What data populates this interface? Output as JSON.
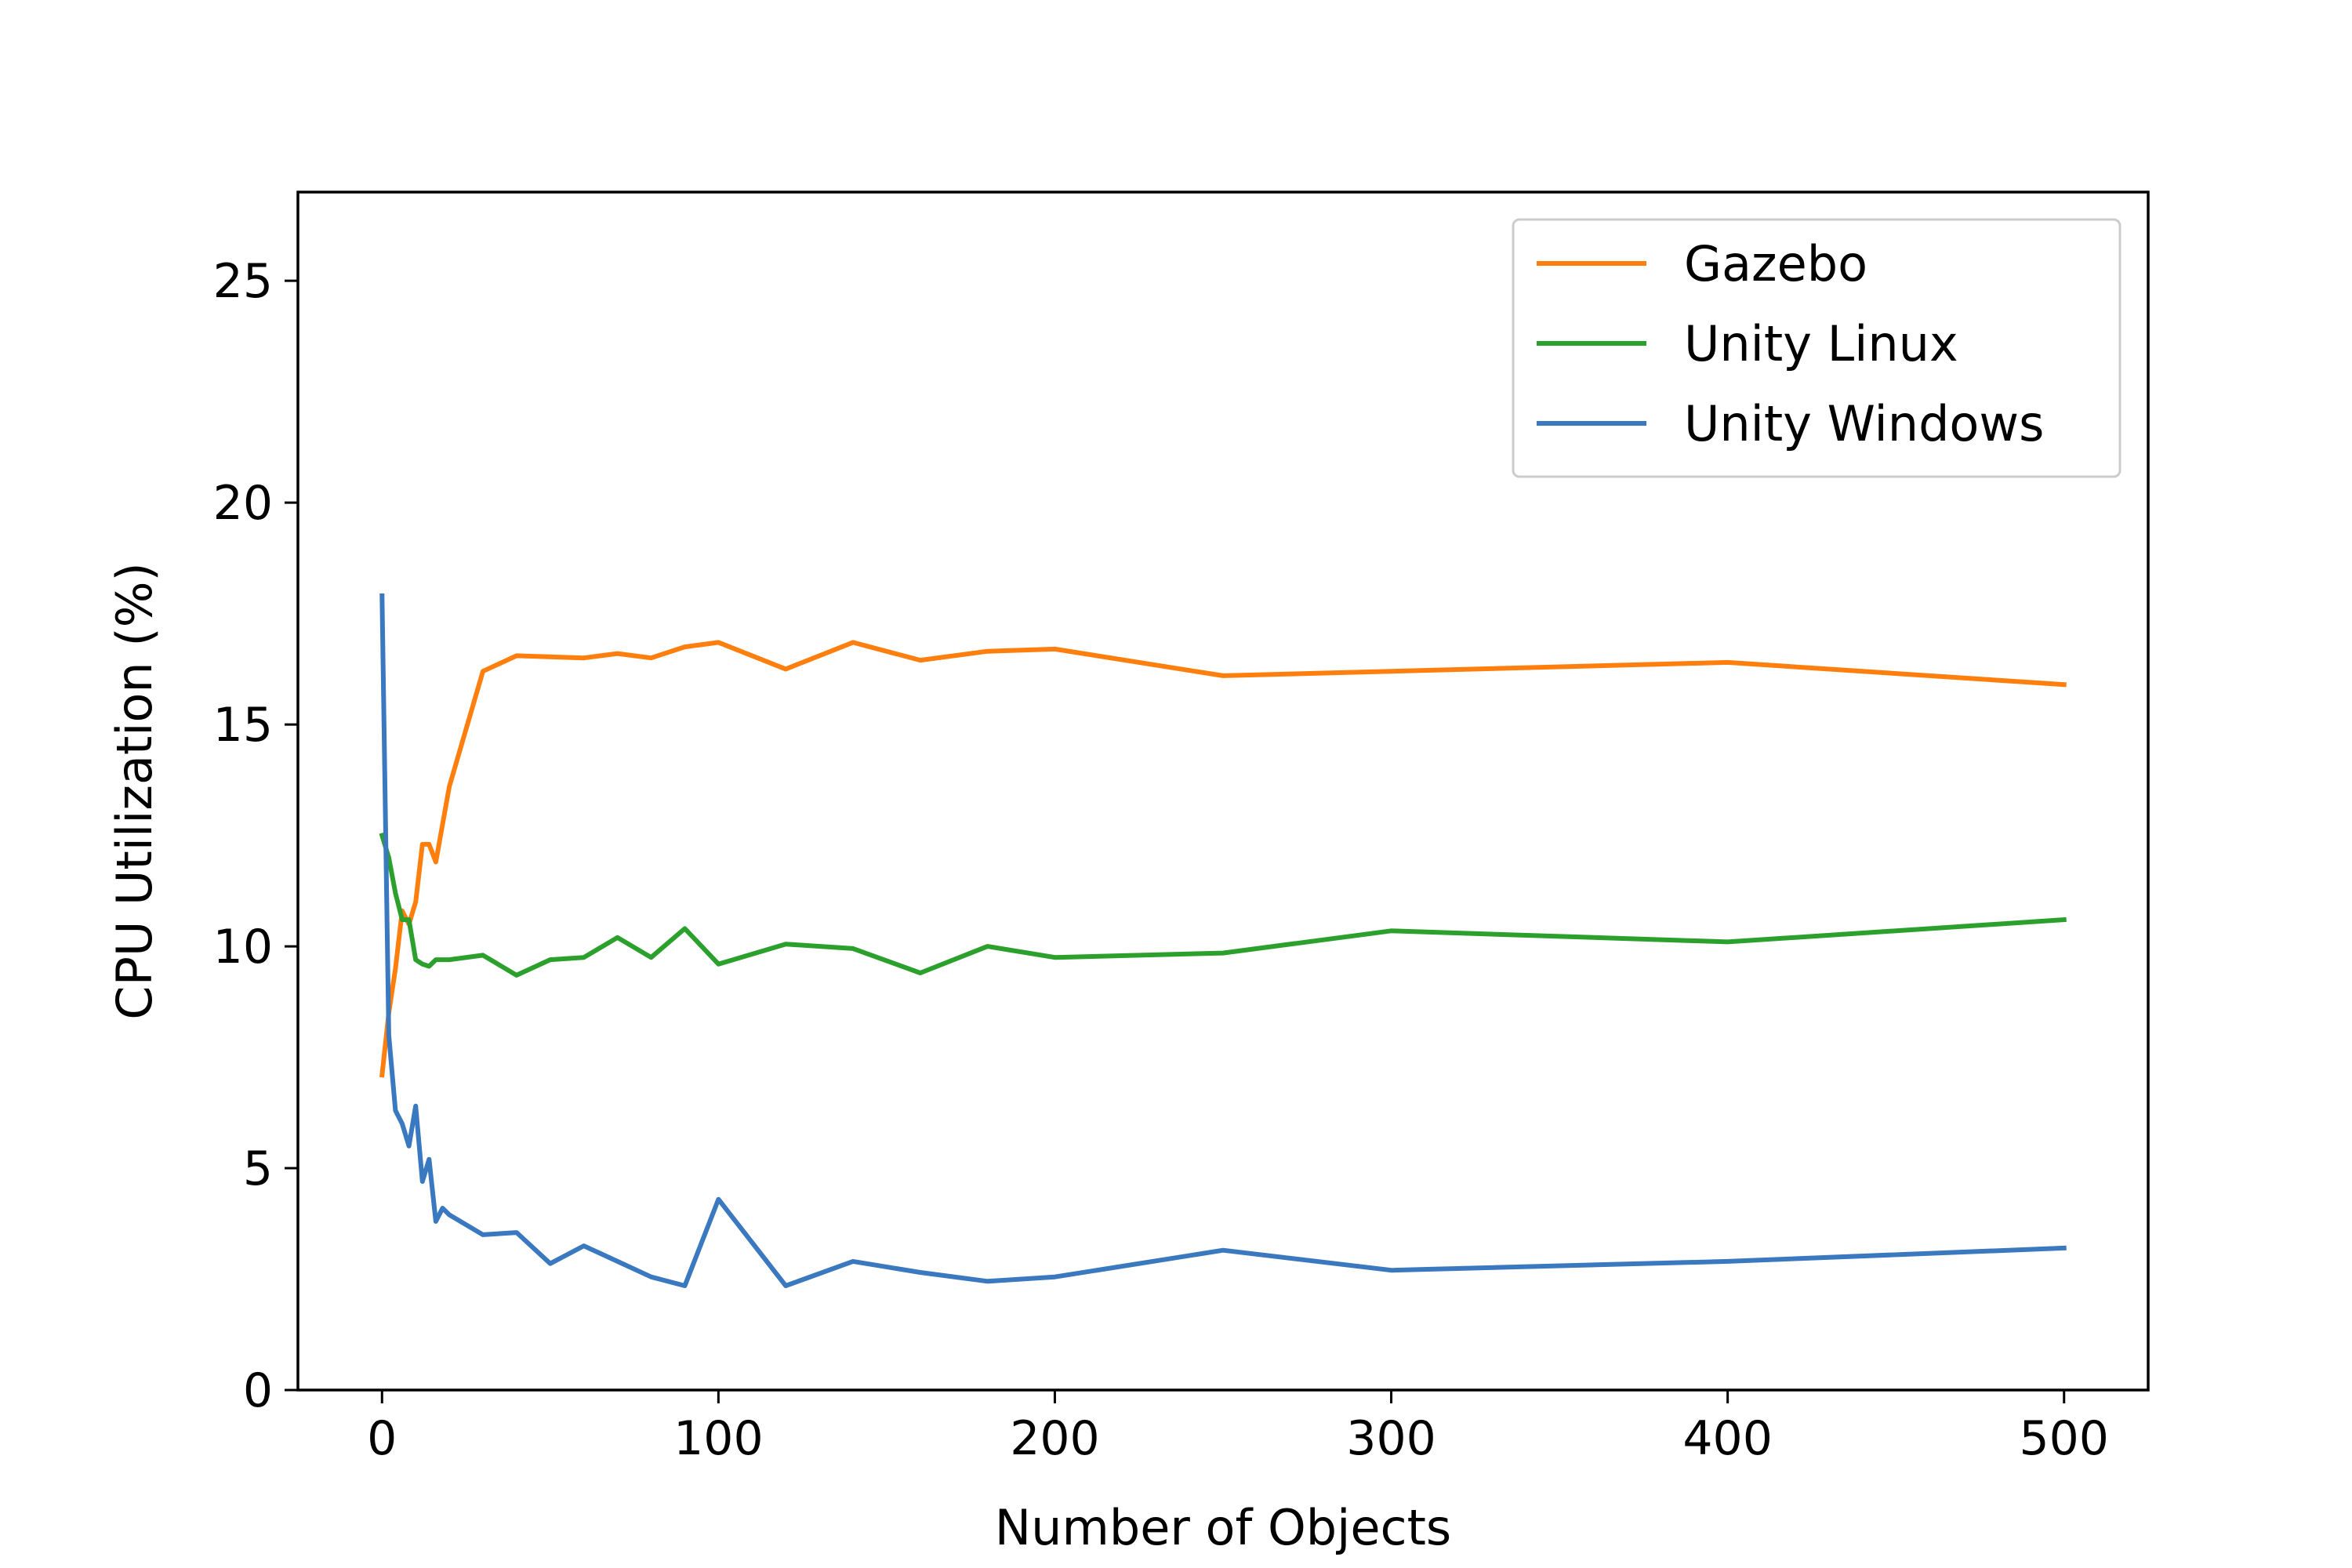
{
  "chart_data": {
    "type": "line",
    "title": "",
    "xlabel": "Number of Objects",
    "ylabel": "CPU Utilization (%)",
    "xlim": [
      -25,
      525
    ],
    "ylim": [
      0,
      27
    ],
    "xticks": [
      0,
      100,
      200,
      300,
      400,
      500
    ],
    "yticks": [
      0,
      5,
      10,
      15,
      20,
      25
    ],
    "grid": false,
    "legend_position": "top-right",
    "series": [
      {
        "name": "Gazebo",
        "color": "#ff7f0e",
        "x": [
          0,
          2,
          4,
          6,
          8,
          10,
          12,
          14,
          16,
          20,
          30,
          40,
          60,
          70,
          80,
          90,
          100,
          120,
          140,
          160,
          180,
          200,
          250,
          300,
          400,
          500
        ],
        "y": [
          7.1,
          8.5,
          9.5,
          10.8,
          10.5,
          11.0,
          12.3,
          12.3,
          11.9,
          13.6,
          16.2,
          16.55,
          16.5,
          16.6,
          16.5,
          16.75,
          16.85,
          16.25,
          16.85,
          16.45,
          16.65,
          16.7,
          16.1,
          16.2,
          16.4,
          15.9
        ]
      },
      {
        "name": "Unity Linux",
        "color": "#2ca02c",
        "x": [
          0,
          2,
          4,
          6,
          8,
          10,
          12,
          14,
          16,
          20,
          30,
          40,
          50,
          60,
          70,
          80,
          90,
          100,
          120,
          140,
          160,
          180,
          200,
          250,
          300,
          400,
          500
        ],
        "y": [
          12.5,
          12.0,
          11.2,
          10.6,
          10.6,
          9.7,
          9.6,
          9.55,
          9.7,
          9.7,
          9.8,
          9.35,
          9.7,
          9.75,
          10.2,
          9.75,
          10.4,
          9.6,
          10.05,
          9.95,
          9.4,
          10.0,
          9.75,
          9.85,
          10.35,
          10.1,
          10.6
        ]
      },
      {
        "name": "Unity Windows",
        "color": "#3a78bf",
        "x": [
          0,
          2,
          4,
          6,
          8,
          10,
          12,
          14,
          16,
          18,
          20,
          30,
          40,
          50,
          60,
          70,
          80,
          90,
          100,
          120,
          140,
          160,
          180,
          200,
          250,
          300,
          400,
          500
        ],
        "y": [
          17.9,
          8.0,
          6.3,
          6.0,
          5.5,
          6.4,
          4.7,
          5.2,
          3.8,
          4.1,
          3.95,
          3.5,
          3.55,
          2.85,
          3.25,
          2.9,
          2.55,
          2.35,
          4.3,
          2.35,
          2.9,
          2.65,
          2.45,
          2.55,
          3.15,
          2.7,
          2.9,
          3.2
        ]
      }
    ]
  }
}
